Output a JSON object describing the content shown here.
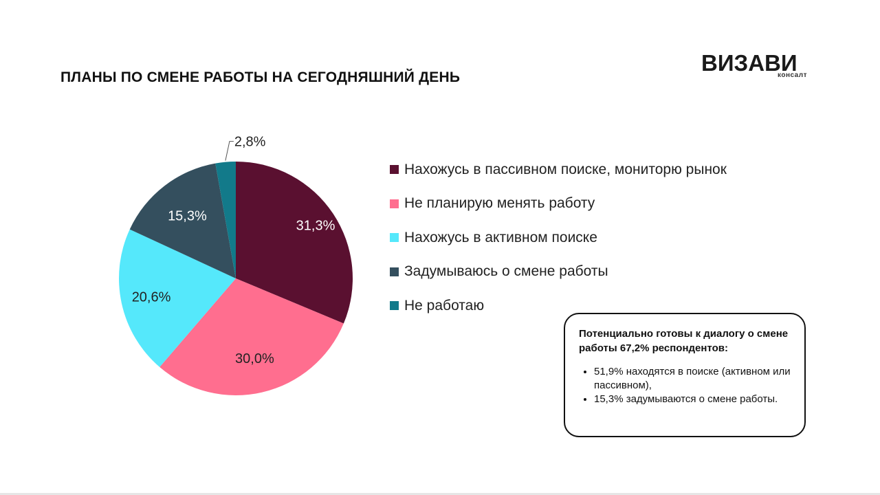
{
  "title": "ПЛАНЫ ПО СМЕНЕ РАБОТЫ НА СЕГОДНЯШНИЙ ДЕНЬ",
  "logo": {
    "name": "ВИЗАВИ",
    "subtitle": "консалт",
    "mark_color": "#5a1030"
  },
  "chart_data": {
    "type": "pie",
    "start_angle_deg": 0,
    "direction": "clockwise",
    "categories": [
      "Нахожусь в пассивном поиске, мониторю рынок",
      "Не планирую менять работу",
      "Нахожусь в активном поиске",
      "Задумываюсь о смене работы",
      "Не работаю"
    ],
    "values": [
      31.3,
      30.0,
      20.6,
      15.3,
      2.8
    ],
    "data_labels": [
      "31,3%",
      "30,0%",
      "20,6%",
      "15,3%",
      "2,8%"
    ],
    "colors": [
      "#5a1030",
      "#ff6e8f",
      "#55e8fb",
      "#344f5e",
      "#127a8a"
    ],
    "label_colors": [
      "#ffffff",
      "#222222",
      "#222222",
      "#ffffff",
      "#222222"
    ],
    "legend_position": "right"
  },
  "callout": {
    "heading": "Потенциально готовы к диалогу о смене работы 67,2% респондентов:",
    "bullets": [
      "51,9% находятся в поиске (активном или пассивном),",
      "15,3% задумываются о смене работы."
    ]
  }
}
